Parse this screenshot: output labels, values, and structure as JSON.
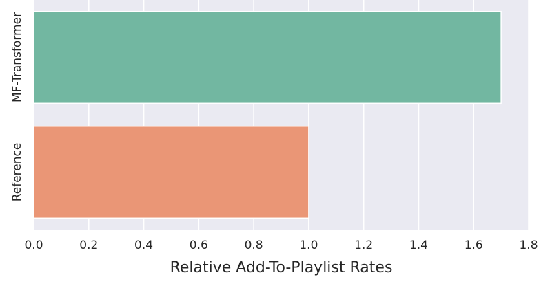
{
  "chart_data": {
    "type": "bar",
    "orientation": "horizontal",
    "categories": [
      "MF-Transformer",
      "Reference"
    ],
    "values": [
      1.7,
      1.0
    ],
    "colors": [
      "#72b7a1",
      "#ea9676"
    ],
    "xlabel": "Relative Add-To-Playlist Rates",
    "ylabel": "",
    "xlim": [
      0,
      1.8
    ],
    "xticks": [
      "0.0",
      "0.2",
      "0.4",
      "0.6",
      "0.8",
      "1.0",
      "1.2",
      "1.4",
      "1.6",
      "1.8"
    ],
    "grid": true,
    "background": "#eaeaf2"
  }
}
